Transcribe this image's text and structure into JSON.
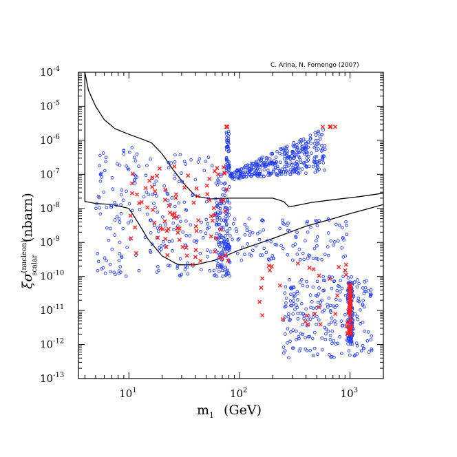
{
  "chart_data": {
    "type": "scatter",
    "credit": "C. Arina, N. Fornengo (2007)",
    "xlabel": {
      "main": "m",
      "sub": "1",
      "unit": "(GeV)"
    },
    "ylabel": {
      "xi": "ξ",
      "sigma": "σ",
      "sup": "(nucleon)",
      "sub": "scalar",
      "unit": "(nbarn)"
    },
    "x_scale": "log",
    "y_scale": "log",
    "xlim": [
      3.5,
      2000
    ],
    "ylim": [
      1e-13,
      0.0001
    ],
    "x_ticks": [
      {
        "value": 10,
        "base": "10",
        "exp": "1"
      },
      {
        "value": 100,
        "base": "10",
        "exp": "2"
      },
      {
        "value": 1000,
        "base": "10",
        "exp": "3"
      }
    ],
    "y_ticks": [
      {
        "value": 0.0001,
        "base": "10",
        "exp": "-4"
      },
      {
        "value": 1e-05,
        "base": "10",
        "exp": "-5"
      },
      {
        "value": 1e-06,
        "base": "10",
        "exp": "-6"
      },
      {
        "value": 1e-07,
        "base": "10",
        "exp": "-7"
      },
      {
        "value": 1e-08,
        "base": "10",
        "exp": "-8"
      },
      {
        "value": 1e-09,
        "base": "10",
        "exp": "-9"
      },
      {
        "value": 1e-10,
        "base": "10",
        "exp": "-10"
      },
      {
        "value": 1e-11,
        "base": "10",
        "exp": "-11"
      },
      {
        "value": 1e-12,
        "base": "10",
        "exp": "-12"
      },
      {
        "value": 1e-13,
        "base": "10",
        "exp": "-13"
      }
    ],
    "curves": [
      {
        "name": "upper-exclusion-curve",
        "points": [
          [
            4.0,
            0.0001
          ],
          [
            4.3,
            3e-05
          ],
          [
            5.0,
            1e-05
          ],
          [
            6.0,
            4e-06
          ],
          [
            7.5,
            2.2e-06
          ],
          [
            10,
            1.5e-06
          ],
          [
            13,
            1.1e-06
          ],
          [
            16,
            8.5e-07
          ],
          [
            20,
            4e-07
          ],
          [
            25,
            1.4e-07
          ],
          [
            32,
            5e-08
          ],
          [
            40,
            2.3e-08
          ],
          [
            55,
            1.9e-08
          ],
          [
            80,
            2e-08
          ],
          [
            120,
            2e-08
          ],
          [
            200,
            2e-08
          ],
          [
            250,
            1.6e-08
          ],
          [
            280,
            1.1e-08
          ],
          [
            320,
            1.2e-08
          ],
          [
            450,
            1.5e-08
          ],
          [
            700,
            1.8e-08
          ],
          [
            1200,
            2.2e-08
          ],
          [
            2000,
            2.8e-08
          ]
        ]
      },
      {
        "name": "lower-exclusion-curve",
        "points": [
          [
            4.0,
            0.0001
          ],
          [
            4.0,
            1.6e-08
          ],
          [
            5.0,
            1.4e-08
          ],
          [
            7.0,
            1.3e-08
          ],
          [
            10,
            1e-08
          ],
          [
            12,
            4e-09
          ],
          [
            15,
            1.2e-09
          ],
          [
            20,
            4e-10
          ],
          [
            28,
            2.2e-10
          ],
          [
            40,
            2.2e-10
          ],
          [
            60,
            3e-10
          ],
          [
            100,
            6e-10
          ],
          [
            200,
            1.3e-09
          ],
          [
            400,
            3e-09
          ],
          [
            700,
            5e-09
          ],
          [
            1000,
            7e-09
          ],
          [
            1500,
            1e-08
          ],
          [
            2000,
            1.3e-08
          ]
        ]
      }
    ],
    "series": [
      {
        "name": "blue-circles",
        "marker": "circle",
        "color": "#1f3bff",
        "regions": [
          {
            "note": "funnel/plume above curves",
            "mass": [
              78,
              700
            ],
            "sigma": [
              6e-08,
              2.5e-06
            ]
          },
          {
            "note": "low-mass scatter",
            "mass": [
              5,
              82
            ],
            "sigma": [
              1e-10,
              8e-07
            ]
          },
          {
            "note": "mid-mass scatter",
            "mass": [
              80,
              1000
            ],
            "sigma": [
              3e-10,
              5e-09
            ]
          },
          {
            "note": "high-mass cluster",
            "mass": [
              250,
              1600
            ],
            "sigma": [
              4e-13,
              1e-10
            ]
          },
          {
            "note": "vertical band near 1000 GeV",
            "mass": [
              950,
              1050
            ],
            "sigma": [
              1e-12,
              7e-11
            ]
          }
        ]
      },
      {
        "name": "red-crosses",
        "marker": "x",
        "color": "#ff2020",
        "regions": [
          {
            "note": "low-mass scatter",
            "mass": [
              10,
              80
            ],
            "sigma": [
              2e-10,
              2e-07
            ]
          },
          {
            "note": "high-mass scatter",
            "mass": [
              150,
              1000
            ],
            "sigma": [
              2e-12,
              3e-10
            ]
          },
          {
            "note": "vertical band at 1000 GeV",
            "mass": [
              1000,
              1000
            ],
            "sigma": [
              2e-12,
              6e-11
            ]
          },
          {
            "note": "row at 2.5e-6",
            "mass": [
              76,
              760
            ],
            "sigma": [
              2.5e-06,
              2.5e-06
            ]
          }
        ]
      }
    ]
  }
}
